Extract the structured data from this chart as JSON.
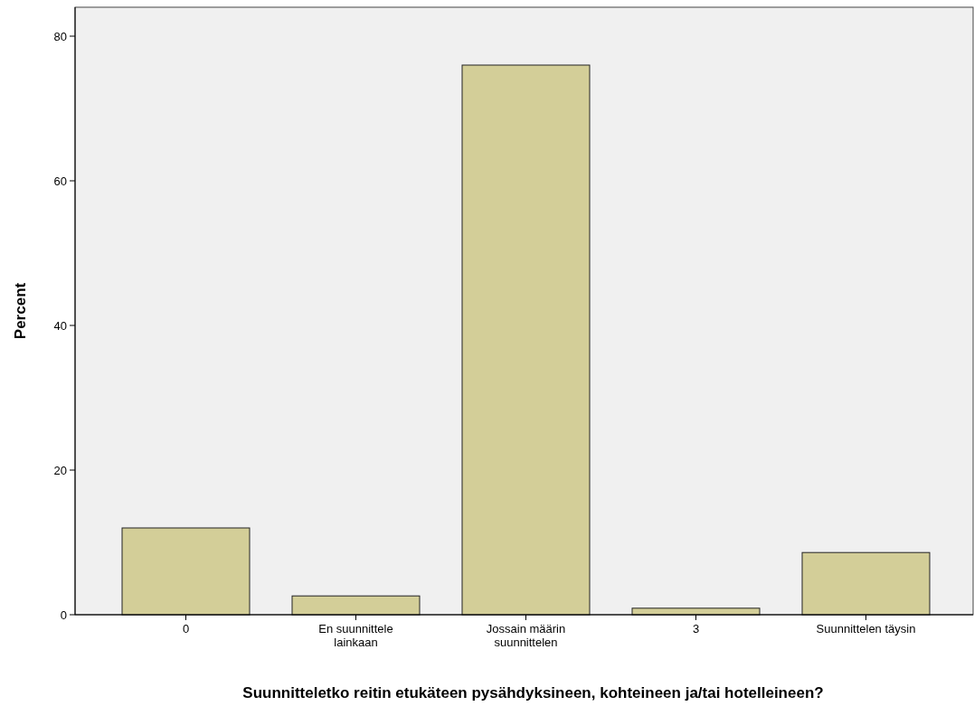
{
  "chart_data": {
    "type": "bar",
    "xlabel": "Suunnitteletko reitin etukäteen pysähdyksineen, kohteineen ja/tai hotelleineen?",
    "ylabel": "Percent",
    "categories": [
      "0",
      "En suunnittele lainkaan",
      "Jossain määrin suunnittelen",
      "3",
      "Suunnittelen täysin"
    ],
    "values": [
      12.0,
      2.6,
      76.0,
      0.9,
      8.6
    ],
    "color": "#d3ce98",
    "ylim": [
      0,
      84
    ],
    "yticks": [
      0,
      20,
      40,
      60,
      80
    ],
    "grid": false
  }
}
